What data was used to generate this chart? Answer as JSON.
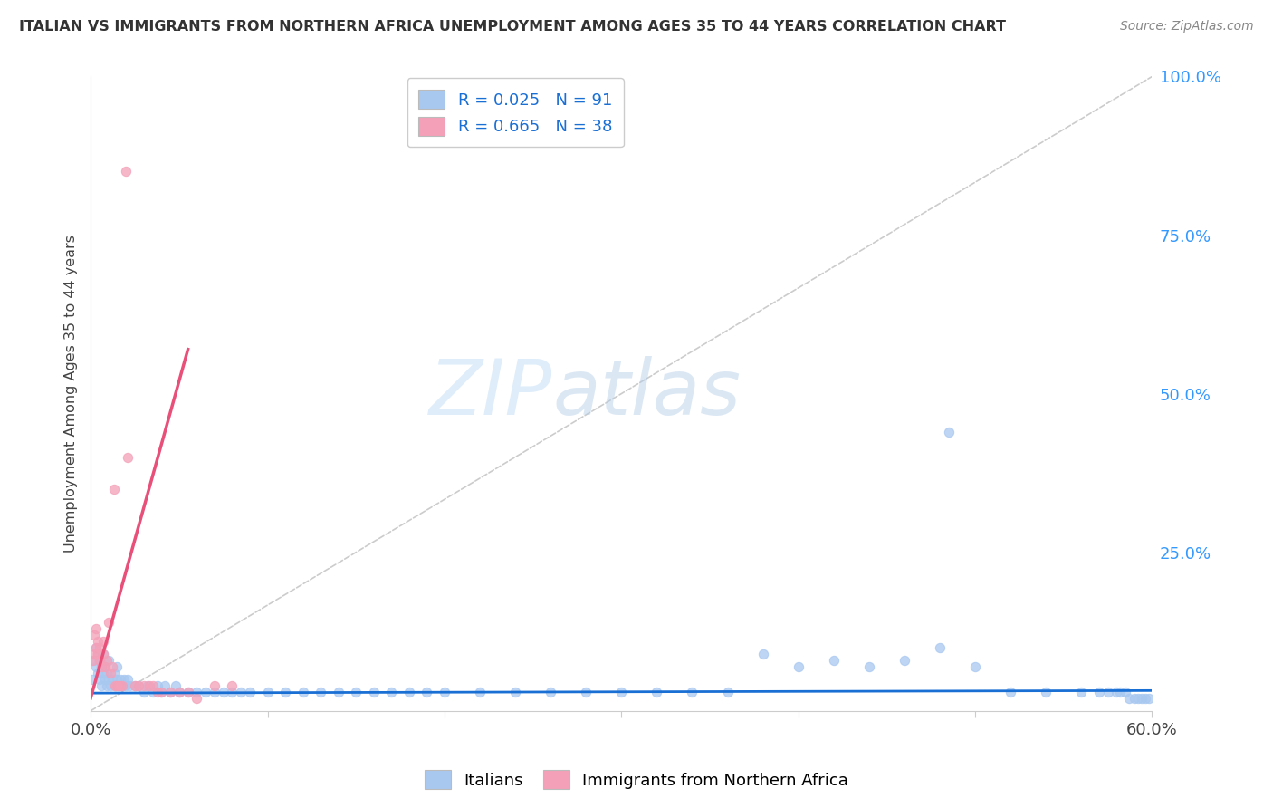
{
  "title": "ITALIAN VS IMMIGRANTS FROM NORTHERN AFRICA UNEMPLOYMENT AMONG AGES 35 TO 44 YEARS CORRELATION CHART",
  "source": "Source: ZipAtlas.com",
  "ylabel": "Unemployment Among Ages 35 to 44 years",
  "xlim": [
    0.0,
    0.6
  ],
  "ylim": [
    0.0,
    1.0
  ],
  "yticks": [
    0.0,
    0.25,
    0.5,
    0.75,
    1.0
  ],
  "yticklabels_right": [
    "",
    "25.0%",
    "50.0%",
    "75.0%",
    "100.0%"
  ],
  "italian_R": 0.025,
  "italian_N": 91,
  "nafrica_R": 0.665,
  "nafrica_N": 38,
  "italian_color": "#a8c8f0",
  "nafrica_color": "#f4a0b8",
  "italian_line_color": "#1a6fd4",
  "nafrica_line_color": "#e8507a",
  "diagonal_color": "#cccccc",
  "background_color": "#ffffff",
  "watermark_zip": "ZIP",
  "watermark_atlas": "atlas",
  "grid_color": "#e0e0e0",
  "it_scatter_x": [
    0.001,
    0.002,
    0.003,
    0.003,
    0.004,
    0.004,
    0.005,
    0.005,
    0.006,
    0.006,
    0.007,
    0.007,
    0.008,
    0.008,
    0.009,
    0.009,
    0.01,
    0.01,
    0.011,
    0.012,
    0.013,
    0.014,
    0.015,
    0.015,
    0.016,
    0.017,
    0.018,
    0.019,
    0.02,
    0.021,
    0.022,
    0.025,
    0.027,
    0.03,
    0.032,
    0.035,
    0.038,
    0.04,
    0.042,
    0.045,
    0.048,
    0.05,
    0.055,
    0.06,
    0.065,
    0.07,
    0.075,
    0.08,
    0.085,
    0.09,
    0.1,
    0.11,
    0.12,
    0.13,
    0.14,
    0.15,
    0.16,
    0.17,
    0.18,
    0.19,
    0.2,
    0.22,
    0.24,
    0.26,
    0.28,
    0.3,
    0.32,
    0.34,
    0.36,
    0.38,
    0.4,
    0.42,
    0.44,
    0.46,
    0.48,
    0.485,
    0.5,
    0.52,
    0.54,
    0.56,
    0.57,
    0.575,
    0.58,
    0.582,
    0.585,
    0.587,
    0.59,
    0.592,
    0.594,
    0.596,
    0.598
  ],
  "it_scatter_y": [
    0.05,
    0.08,
    0.07,
    0.1,
    0.06,
    0.09,
    0.05,
    0.08,
    0.04,
    0.07,
    0.06,
    0.09,
    0.05,
    0.07,
    0.04,
    0.06,
    0.05,
    0.08,
    0.04,
    0.05,
    0.06,
    0.04,
    0.05,
    0.07,
    0.04,
    0.05,
    0.04,
    0.05,
    0.04,
    0.05,
    0.04,
    0.04,
    0.04,
    0.03,
    0.04,
    0.03,
    0.04,
    0.03,
    0.04,
    0.03,
    0.04,
    0.03,
    0.03,
    0.03,
    0.03,
    0.03,
    0.03,
    0.03,
    0.03,
    0.03,
    0.03,
    0.03,
    0.03,
    0.03,
    0.03,
    0.03,
    0.03,
    0.03,
    0.03,
    0.03,
    0.03,
    0.03,
    0.03,
    0.03,
    0.03,
    0.03,
    0.03,
    0.03,
    0.03,
    0.09,
    0.07,
    0.08,
    0.07,
    0.08,
    0.1,
    0.44,
    0.07,
    0.03,
    0.03,
    0.03,
    0.03,
    0.03,
    0.03,
    0.03,
    0.03,
    0.02,
    0.02,
    0.02,
    0.02,
    0.02,
    0.02
  ],
  "na_scatter_x": [
    0.001,
    0.002,
    0.002,
    0.003,
    0.003,
    0.004,
    0.004,
    0.005,
    0.005,
    0.006,
    0.007,
    0.007,
    0.008,
    0.009,
    0.01,
    0.011,
    0.012,
    0.013,
    0.014,
    0.015,
    0.016,
    0.017,
    0.018,
    0.02,
    0.021,
    0.025,
    0.027,
    0.03,
    0.033,
    0.035,
    0.038,
    0.04,
    0.045,
    0.05,
    0.055,
    0.06,
    0.07,
    0.08
  ],
  "na_scatter_y": [
    0.08,
    0.09,
    0.12,
    0.1,
    0.13,
    0.09,
    0.11,
    0.08,
    0.1,
    0.07,
    0.09,
    0.11,
    0.07,
    0.08,
    0.14,
    0.06,
    0.07,
    0.35,
    0.04,
    0.04,
    0.04,
    0.04,
    0.04,
    0.85,
    0.4,
    0.04,
    0.04,
    0.04,
    0.04,
    0.04,
    0.03,
    0.03,
    0.03,
    0.03,
    0.03,
    0.02,
    0.04,
    0.04
  ],
  "na_line_x": [
    0.0,
    0.055
  ],
  "na_line_y": [
    0.02,
    0.57
  ],
  "it_line_x": [
    0.0,
    0.6
  ],
  "it_line_y": [
    0.028,
    0.032
  ]
}
